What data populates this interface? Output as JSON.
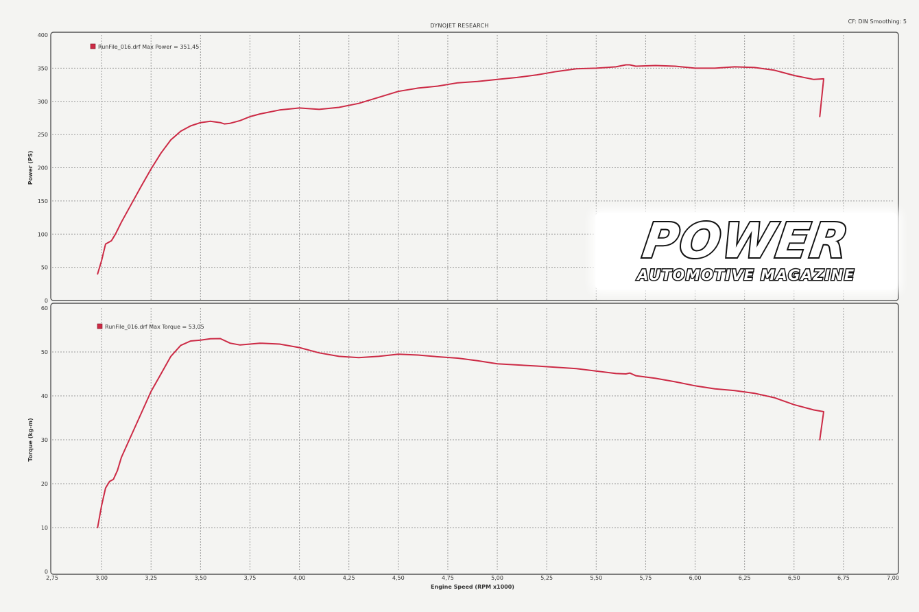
{
  "header": {
    "title": "DYNOJET RESEARCH",
    "settings": "CF: DIN  Smoothing: 5"
  },
  "logo": {
    "main": "POWER",
    "sub": "AUTOMOTIVE MAGAZINE"
  },
  "colors": {
    "curve": "#cc2a45",
    "background": "#f4f4f2",
    "grid": "#9a9a9a"
  },
  "chart_data": [
    {
      "type": "line",
      "legend": "RunFile_016.drf Max Power = 351,45",
      "ylabel": "Power (PS)",
      "xlim": [
        2.75,
        7.0
      ],
      "ylim": [
        0,
        400
      ],
      "xticks": [
        "2,75",
        "3,00",
        "3,25",
        "3,50",
        "3,75",
        "4,00",
        "4,25",
        "4,50",
        "4,75",
        "5,00",
        "5,25",
        "5,50",
        "5,75",
        "6,00",
        "6,25",
        "6,50",
        "6,75",
        "7,00"
      ],
      "yticks": [
        "0",
        "50",
        "100",
        "150",
        "200",
        "250",
        "300",
        "350",
        "400"
      ],
      "grid": true,
      "series": [
        {
          "x": [
            2.98,
            3.0,
            3.02,
            3.05,
            3.07,
            3.1,
            3.15,
            3.2,
            3.25,
            3.3,
            3.35,
            3.4,
            3.45,
            3.5,
            3.55,
            3.6,
            3.62,
            3.65,
            3.7,
            3.75,
            3.8,
            3.9,
            4.0,
            4.1,
            4.2,
            4.3,
            4.4,
            4.5,
            4.6,
            4.7,
            4.8,
            4.9,
            5.0,
            5.1,
            5.2,
            5.3,
            5.4,
            5.5,
            5.6,
            5.65,
            5.67,
            5.7,
            5.8,
            5.9,
            6.0,
            6.1,
            6.2,
            6.3,
            6.4,
            6.5,
            6.6,
            6.65,
            6.63
          ],
          "y": [
            40,
            60,
            85,
            90,
            100,
            118,
            145,
            172,
            198,
            222,
            242,
            255,
            263,
            268,
            270,
            268,
            266,
            267,
            271,
            277,
            281,
            287,
            290,
            288,
            291,
            297,
            306,
            315,
            320,
            323,
            328,
            330,
            333,
            336,
            340,
            345,
            349,
            350,
            352,
            355,
            355,
            353,
            354,
            353,
            350,
            350,
            352,
            351,
            347,
            339,
            333,
            334,
            277
          ]
        }
      ]
    },
    {
      "type": "line",
      "legend": "RunFile_016.drf Max Torque = 53,05",
      "xlabel": "Engine Speed (RPM x1000)",
      "ylabel": "Torque (kg-m)",
      "xlim": [
        2.75,
        7.0
      ],
      "ylim": [
        0,
        60
      ],
      "xticks": [
        "2,75",
        "3,00",
        "3,25",
        "3,50",
        "3,75",
        "4,00",
        "4,25",
        "4,50",
        "4,75",
        "5,00",
        "5,25",
        "5,50",
        "5,75",
        "6,00",
        "6,25",
        "6,50",
        "6,75",
        "7,00"
      ],
      "yticks": [
        "0",
        "10",
        "20",
        "30",
        "40",
        "50",
        "60"
      ],
      "grid": true,
      "series": [
        {
          "x": [
            2.98,
            3.0,
            3.02,
            3.04,
            3.06,
            3.08,
            3.1,
            3.15,
            3.2,
            3.25,
            3.3,
            3.35,
            3.4,
            3.45,
            3.5,
            3.55,
            3.6,
            3.65,
            3.7,
            3.8,
            3.9,
            4.0,
            4.1,
            4.2,
            4.3,
            4.4,
            4.5,
            4.6,
            4.7,
            4.8,
            4.9,
            5.0,
            5.2,
            5.4,
            5.6,
            5.65,
            5.67,
            5.7,
            5.8,
            5.9,
            6.0,
            6.1,
            6.2,
            6.3,
            6.4,
            6.5,
            6.6,
            6.65,
            6.63
          ],
          "y": [
            10,
            15,
            19,
            20.5,
            21,
            23,
            26,
            31,
            36,
            41,
            45,
            49,
            51.5,
            52.5,
            52.7,
            53.0,
            53.05,
            52.0,
            51.6,
            52.0,
            51.8,
            51.0,
            49.8,
            49.0,
            48.7,
            49.0,
            49.5,
            49.3,
            48.9,
            48.6,
            48.0,
            47.3,
            46.8,
            46.2,
            45.1,
            45.0,
            45.2,
            44.6,
            44.0,
            43.2,
            42.3,
            41.6,
            41.2,
            40.6,
            39.6,
            38.0,
            36.8,
            36.4,
            30
          ]
        }
      ]
    }
  ]
}
